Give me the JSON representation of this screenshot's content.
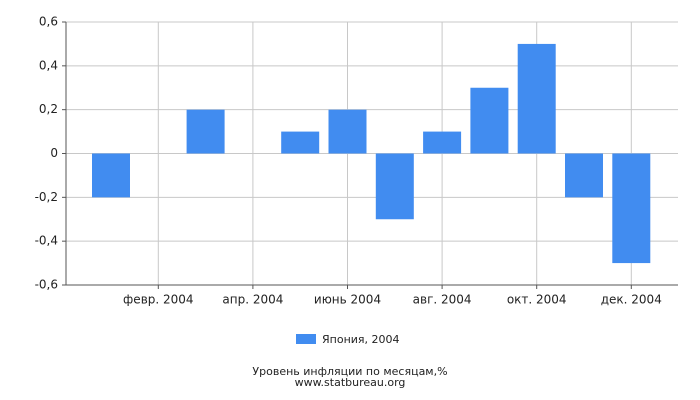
{
  "chart_data": {
    "type": "bar",
    "categories": [
      null,
      "февр. 2004",
      null,
      "апр. 2004",
      null,
      "июнь 2004",
      null,
      "авг. 2004",
      null,
      "окт. 2004",
      null,
      "дек. 2004"
    ],
    "series": [
      {
        "name": "Япония, 2004",
        "color": "#418cf0",
        "values": [
          -0.2,
          0,
          0.2,
          0,
          0.1,
          0.2,
          -0.3,
          0.1,
          0.3,
          0.5,
          -0.2,
          -0.5
        ]
      }
    ],
    "ylim": [
      -0.6,
      0.6
    ],
    "yticks": [
      {
        "value": -0.6,
        "label": "-0,6"
      },
      {
        "value": -0.4,
        "label": "-0,4"
      },
      {
        "value": -0.2,
        "label": "-0,2"
      },
      0,
      {
        "value": 0.2,
        "label": "0,2"
      },
      {
        "value": 0.4,
        "label": "0,4"
      },
      {
        "value": 0.6,
        "label": "0,6"
      }
    ],
    "grid": true,
    "legend": "bottom",
    "footer": [
      "Уровень инфляции по месяцам,%",
      "www.statbureau.org"
    ]
  }
}
